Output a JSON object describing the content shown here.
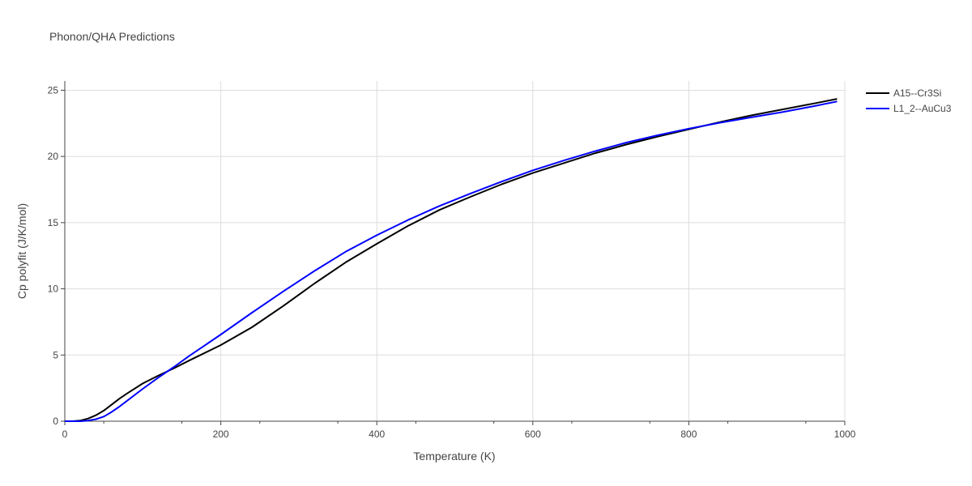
{
  "chart_data": {
    "type": "line",
    "title": "Phonon/QHA Predictions",
    "xlabel": "Temperature (K)",
    "ylabel": "Cp polyfit (J/K/mol)",
    "xlim": [
      0,
      1000
    ],
    "ylim": [
      0,
      25.7
    ],
    "xticks": [
      0,
      200,
      400,
      600,
      800,
      1000
    ],
    "yticks": [
      0,
      5,
      10,
      15,
      20,
      25
    ],
    "grid": true,
    "legend_position": "top-right",
    "series": [
      {
        "name": "A15--Cr3Si",
        "color": "#000000",
        "x": [
          0,
          10,
          20,
          30,
          40,
          50,
          60,
          70,
          80,
          100,
          120,
          140,
          160,
          200,
          240,
          280,
          320,
          360,
          400,
          440,
          480,
          520,
          560,
          600,
          640,
          680,
          720,
          760,
          800,
          840,
          880,
          920,
          960,
          990
        ],
        "y": [
          0,
          0,
          0.05,
          0.2,
          0.45,
          0.8,
          1.25,
          1.7,
          2.1,
          2.85,
          3.45,
          4.0,
          4.6,
          5.75,
          7.1,
          8.7,
          10.4,
          12.0,
          13.4,
          14.75,
          15.95,
          16.95,
          17.9,
          18.75,
          19.5,
          20.25,
          20.9,
          21.5,
          22.05,
          22.6,
          23.1,
          23.55,
          24.0,
          24.35
        ]
      },
      {
        "name": "L1_2--AuCu3",
        "color": "#0000ff",
        "x": [
          0,
          10,
          20,
          30,
          40,
          50,
          60,
          70,
          80,
          100,
          120,
          140,
          160,
          200,
          240,
          280,
          320,
          360,
          400,
          440,
          480,
          520,
          560,
          600,
          640,
          680,
          720,
          760,
          800,
          840,
          880,
          920,
          960,
          990
        ],
        "y": [
          0,
          0,
          0,
          0.05,
          0.15,
          0.35,
          0.7,
          1.1,
          1.55,
          2.45,
          3.3,
          4.1,
          4.95,
          6.55,
          8.2,
          9.8,
          11.35,
          12.8,
          14.05,
          15.2,
          16.25,
          17.2,
          18.1,
          18.95,
          19.7,
          20.4,
          21.05,
          21.6,
          22.1,
          22.55,
          22.95,
          23.35,
          23.8,
          24.15
        ]
      }
    ]
  }
}
